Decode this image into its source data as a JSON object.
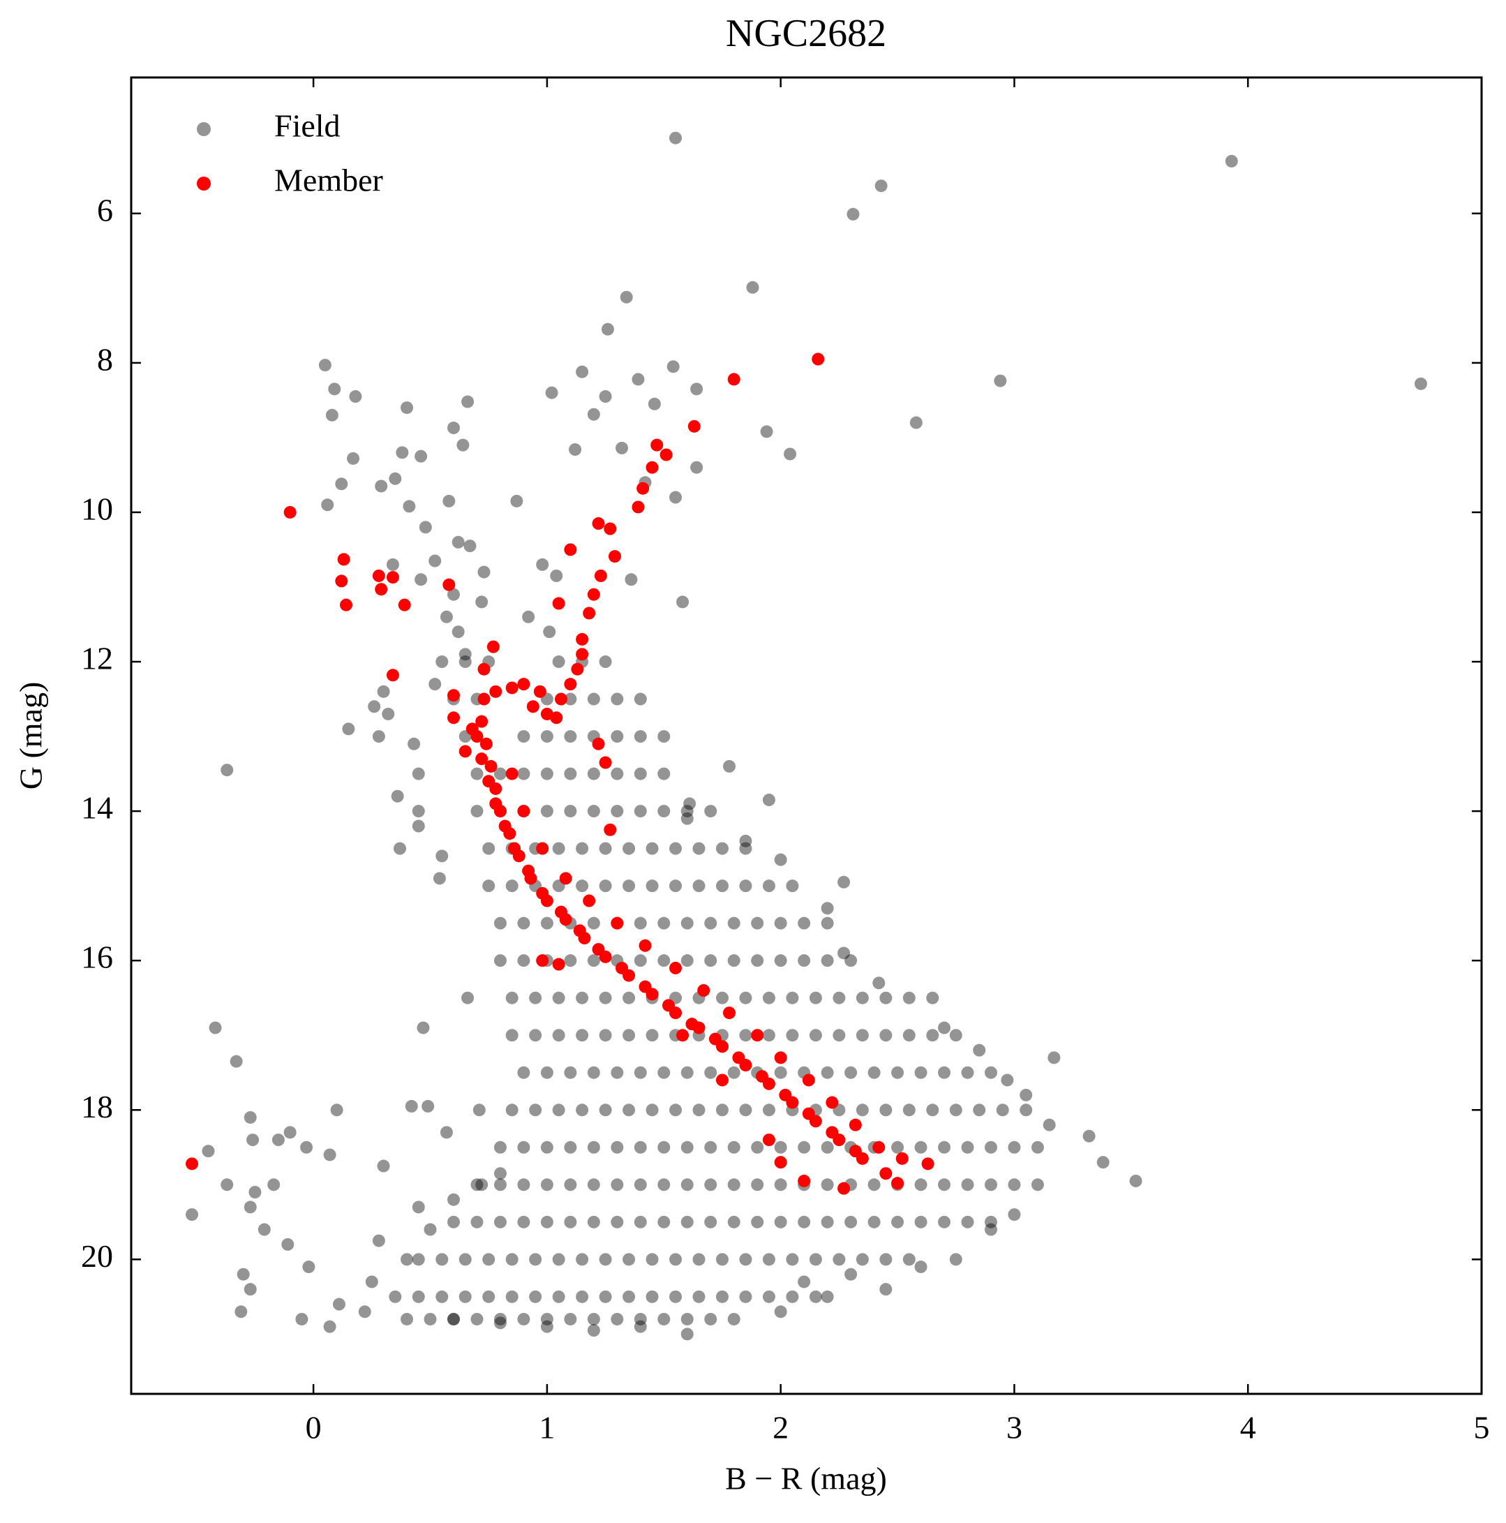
{
  "chart_data": {
    "type": "scatter",
    "title": "NGC2682",
    "x_label": "B − R (mag)",
    "y_label": "G (mag)",
    "xlim": [
      -0.78,
      5.0
    ],
    "ylim": [
      21.8,
      4.18
    ],
    "xticks": [
      0,
      1,
      2,
      3,
      4,
      5
    ],
    "yticks": [
      6,
      8,
      10,
      12,
      14,
      16,
      18,
      20
    ],
    "legend": "upper left",
    "grid": false,
    "series": [
      {
        "name": "Field",
        "color": "#000000",
        "alpha": 0.42,
        "x": [
          1.55,
          3.93,
          2.43,
          2.31,
          1.88,
          1.34,
          1.26,
          0.05,
          1.15,
          1.54,
          1.39,
          1.64,
          2.94,
          4.74,
          0.09,
          0.18,
          0.4,
          0.66,
          1.02,
          1.25,
          1.46,
          0.08,
          1.2,
          2.58,
          1.94,
          0.6,
          0.17,
          0.38,
          0.46,
          0.64,
          1.32,
          1.12,
          2.04,
          1.64,
          0.12,
          0.29,
          0.35,
          1.42,
          0.06,
          0.41,
          0.58,
          0.87,
          1.55,
          0.48,
          0.62,
          0.67,
          0.52,
          0.34,
          0.46,
          0.6,
          0.73,
          0.98,
          1.04,
          1.36,
          1.58,
          0.57,
          0.72,
          0.62,
          0.65,
          0.92,
          1.01,
          0.52,
          0.26,
          0.3,
          0.32,
          0.15,
          0.28,
          -0.37,
          0.43,
          0.45,
          0.36,
          0.45,
          0.45,
          0.37,
          0.54,
          0.55,
          1.78,
          1.95,
          1.61,
          0.66,
          0.47,
          -0.42,
          -0.33,
          0.1,
          0.42,
          0.49,
          0.57,
          0.71,
          -0.27,
          -0.26,
          -0.15,
          -0.1,
          -0.03,
          0.07,
          0.3,
          -0.45,
          -0.52,
          -0.37,
          -0.25,
          -0.17,
          -0.27,
          -0.21,
          -0.11,
          -0.02,
          -0.3,
          -0.27,
          -0.31,
          -0.05,
          0.07,
          0.11,
          0.22,
          0.25,
          0.28,
          0.4,
          0.5,
          0.45,
          0.6,
          0.72,
          0.8,
          3.52,
          3.38,
          3.32,
          3.15,
          3.05,
          3.17,
          2.97,
          2.85,
          2.7,
          2.65,
          2.42,
          2.27,
          2.2,
          2.27,
          2.0,
          1.85,
          1.6,
          3.0,
          2.9,
          2.75,
          2.6,
          2.45,
          2.2,
          2.0,
          1.8,
          1.6,
          1.4,
          1.2,
          1.0,
          0.8,
          0.6,
          2.1,
          2.3,
          0.55,
          0.65,
          0.75,
          1.05,
          1.15,
          1.25,
          0.6,
          0.7,
          1.0,
          1.1,
          1.2,
          1.3,
          1.4,
          0.65,
          0.9,
          1.0,
          1.1,
          1.2,
          1.3,
          1.4,
          1.5,
          0.7,
          0.8,
          0.9,
          1.0,
          1.1,
          1.2,
          1.3,
          1.4,
          1.5,
          0.7,
          0.8,
          0.9,
          1.0,
          1.1,
          1.2,
          1.3,
          1.4,
          1.5,
          1.6,
          1.7,
          0.75,
          0.85,
          0.95,
          1.05,
          1.15,
          1.25,
          1.35,
          1.45,
          1.55,
          1.65,
          1.75,
          1.85,
          0.75,
          0.85,
          0.95,
          1.05,
          1.15,
          1.25,
          1.35,
          1.45,
          1.55,
          1.65,
          1.75,
          1.85,
          1.95,
          2.05,
          0.8,
          0.9,
          1.0,
          1.1,
          1.2,
          1.3,
          1.4,
          1.5,
          1.6,
          1.7,
          1.8,
          1.9,
          2.0,
          2.1,
          2.2,
          0.8,
          0.9,
          1.0,
          1.1,
          1.2,
          1.3,
          1.4,
          1.5,
          1.6,
          1.7,
          1.8,
          1.9,
          2.0,
          2.1,
          2.2,
          2.3,
          0.85,
          0.95,
          1.05,
          1.15,
          1.25,
          1.35,
          1.45,
          1.55,
          1.65,
          1.75,
          1.85,
          1.95,
          2.05,
          2.15,
          2.25,
          2.35,
          2.45,
          2.55,
          0.85,
          0.95,
          1.05,
          1.15,
          1.25,
          1.35,
          1.45,
          1.55,
          1.65,
          1.75,
          1.85,
          1.95,
          2.05,
          2.15,
          2.25,
          2.35,
          2.45,
          2.55,
          2.65,
          2.75,
          0.9,
          1.0,
          1.1,
          1.2,
          1.3,
          1.4,
          1.5,
          1.6,
          1.7,
          1.8,
          1.9,
          2.0,
          2.1,
          2.2,
          2.3,
          2.4,
          2.5,
          2.6,
          2.7,
          2.8,
          2.9,
          0.85,
          0.95,
          1.05,
          1.15,
          1.25,
          1.35,
          1.45,
          1.55,
          1.65,
          1.75,
          1.85,
          1.95,
          2.05,
          2.15,
          2.25,
          2.35,
          2.45,
          2.55,
          2.65,
          2.75,
          2.85,
          2.95,
          3.05,
          0.8,
          0.9,
          1.0,
          1.1,
          1.2,
          1.3,
          1.4,
          1.5,
          1.6,
          1.7,
          1.8,
          1.9,
          2.0,
          2.1,
          2.2,
          2.3,
          2.4,
          2.5,
          2.6,
          2.7,
          2.8,
          2.9,
          3.0,
          3.1,
          0.7,
          0.8,
          0.9,
          1.0,
          1.1,
          1.2,
          1.3,
          1.4,
          1.5,
          1.6,
          1.7,
          1.8,
          1.9,
          2.0,
          2.1,
          2.2,
          2.3,
          2.4,
          2.5,
          2.6,
          2.7,
          2.8,
          2.9,
          3.0,
          3.1,
          0.6,
          0.7,
          0.8,
          0.9,
          1.0,
          1.1,
          1.2,
          1.3,
          1.4,
          1.5,
          1.6,
          1.7,
          1.8,
          1.9,
          2.0,
          2.1,
          2.2,
          2.3,
          2.4,
          2.5,
          2.6,
          2.7,
          2.8,
          2.9,
          0.45,
          0.55,
          0.65,
          0.75,
          0.85,
          0.95,
          1.05,
          1.15,
          1.25,
          1.35,
          1.45,
          1.55,
          1.65,
          1.75,
          1.85,
          1.95,
          2.05,
          2.15,
          2.25,
          2.35,
          2.45,
          2.55,
          0.35,
          0.45,
          0.55,
          0.65,
          0.75,
          0.85,
          0.95,
          1.05,
          1.15,
          1.25,
          1.35,
          1.45,
          1.55,
          1.65,
          1.75,
          1.85,
          1.95,
          2.05,
          2.15,
          0.4,
          0.5,
          0.6,
          0.7,
          0.8,
          0.9,
          1.0,
          1.1,
          1.2,
          1.3,
          1.4,
          1.5,
          1.6,
          1.7
        ],
        "y": [
          4.99,
          5.3,
          5.63,
          6.01,
          6.99,
          7.12,
          7.55,
          8.03,
          8.12,
          8.05,
          8.22,
          8.35,
          8.24,
          8.28,
          8.35,
          8.45,
          8.6,
          8.52,
          8.4,
          8.45,
          8.55,
          8.7,
          8.69,
          8.8,
          8.92,
          8.87,
          9.28,
          9.2,
          9.25,
          9.1,
          9.14,
          9.16,
          9.22,
          9.4,
          9.62,
          9.65,
          9.55,
          9.6,
          9.9,
          9.92,
          9.85,
          9.85,
          9.8,
          10.2,
          10.4,
          10.45,
          10.65,
          10.7,
          10.9,
          11.1,
          10.8,
          10.7,
          10.85,
          10.9,
          11.2,
          11.4,
          11.2,
          11.6,
          11.9,
          11.4,
          11.6,
          12.3,
          12.6,
          12.4,
          12.7,
          12.9,
          13.0,
          13.45,
          13.1,
          13.5,
          13.8,
          14.0,
          14.2,
          14.5,
          14.9,
          14.6,
          13.4,
          13.85,
          13.9,
          16.5,
          16.9,
          16.9,
          17.35,
          18.0,
          17.95,
          17.95,
          18.3,
          18.0,
          18.1,
          18.4,
          18.4,
          18.3,
          18.5,
          18.6,
          18.75,
          18.55,
          19.4,
          19.0,
          19.1,
          19.0,
          19.3,
          19.6,
          19.8,
          20.1,
          20.2,
          20.4,
          20.7,
          20.8,
          20.9,
          20.6,
          20.7,
          20.3,
          19.75,
          20.0,
          19.6,
          19.3,
          19.2,
          19.0,
          18.85,
          18.95,
          18.7,
          18.35,
          18.2,
          17.8,
          17.3,
          17.6,
          17.2,
          16.9,
          16.5,
          16.3,
          15.9,
          15.3,
          14.95,
          14.65,
          14.4,
          14.1,
          19.4,
          19.6,
          20.0,
          20.1,
          20.4,
          20.5,
          20.7,
          20.8,
          21.0,
          20.9,
          20.95,
          20.9,
          20.85,
          20.8,
          20.3,
          20.2,
          12,
          12,
          12,
          12,
          12,
          12,
          12.5,
          12.5,
          12.5,
          12.5,
          12.5,
          12.5,
          12.5,
          13,
          13,
          13,
          13,
          13,
          13,
          13,
          13,
          13.5,
          13.5,
          13.5,
          13.5,
          13.5,
          13.5,
          13.5,
          13.5,
          13.5,
          14,
          14,
          14,
          14,
          14,
          14,
          14,
          14,
          14,
          14,
          14,
          14.5,
          14.5,
          14.5,
          14.5,
          14.5,
          14.5,
          14.5,
          14.5,
          14.5,
          14.5,
          14.5,
          14.5,
          15,
          15,
          15,
          15,
          15,
          15,
          15,
          15,
          15,
          15,
          15,
          15,
          15,
          15,
          15.5,
          15.5,
          15.5,
          15.5,
          15.5,
          15.5,
          15.5,
          15.5,
          15.5,
          15.5,
          15.5,
          15.5,
          15.5,
          15.5,
          15.5,
          16,
          16,
          16,
          16,
          16,
          16,
          16,
          16,
          16,
          16,
          16,
          16,
          16,
          16,
          16,
          16,
          16.5,
          16.5,
          16.5,
          16.5,
          16.5,
          16.5,
          16.5,
          16.5,
          16.5,
          16.5,
          16.5,
          16.5,
          16.5,
          16.5,
          16.5,
          16.5,
          16.5,
          16.5,
          17,
          17,
          17,
          17,
          17,
          17,
          17,
          17,
          17,
          17,
          17,
          17,
          17,
          17,
          17,
          17,
          17,
          17,
          17,
          17,
          17.5,
          17.5,
          17.5,
          17.5,
          17.5,
          17.5,
          17.5,
          17.5,
          17.5,
          17.5,
          17.5,
          17.5,
          17.5,
          17.5,
          17.5,
          17.5,
          17.5,
          17.5,
          17.5,
          17.5,
          17.5,
          18,
          18,
          18,
          18,
          18,
          18,
          18,
          18,
          18,
          18,
          18,
          18,
          18,
          18,
          18,
          18,
          18,
          18,
          18,
          18,
          18,
          18,
          18,
          18.5,
          18.5,
          18.5,
          18.5,
          18.5,
          18.5,
          18.5,
          18.5,
          18.5,
          18.5,
          18.5,
          18.5,
          18.5,
          18.5,
          18.5,
          18.5,
          18.5,
          18.5,
          18.5,
          18.5,
          18.5,
          18.5,
          18.5,
          18.5,
          19,
          19,
          19,
          19,
          19,
          19,
          19,
          19,
          19,
          19,
          19,
          19,
          19,
          19,
          19,
          19,
          19,
          19,
          19,
          19,
          19,
          19,
          19,
          19,
          19,
          19.5,
          19.5,
          19.5,
          19.5,
          19.5,
          19.5,
          19.5,
          19.5,
          19.5,
          19.5,
          19.5,
          19.5,
          19.5,
          19.5,
          19.5,
          19.5,
          19.5,
          19.5,
          19.5,
          19.5,
          19.5,
          19.5,
          19.5,
          19.5,
          20,
          20,
          20,
          20,
          20,
          20,
          20,
          20,
          20,
          20,
          20,
          20,
          20,
          20,
          20,
          20,
          20,
          20,
          20,
          20,
          20,
          20,
          20.5,
          20.5,
          20.5,
          20.5,
          20.5,
          20.5,
          20.5,
          20.5,
          20.5,
          20.5,
          20.5,
          20.5,
          20.5,
          20.5,
          20.5,
          20.5,
          20.5,
          20.5,
          20.5,
          20.8,
          20.8,
          20.8,
          20.8,
          20.8,
          20.8,
          20.8,
          20.8,
          20.8,
          20.8,
          20.8,
          20.8,
          20.8,
          20.8
        ]
      },
      {
        "name": "Member",
        "color": "#ff0000",
        "alpha": 1,
        "x": [
          -0.1,
          0.13,
          0.12,
          0.14,
          0.28,
          0.34,
          0.29,
          0.39,
          0.34,
          0.58,
          1.8,
          2.16,
          1.63,
          1.47,
          1.51,
          1.45,
          1.41,
          1.39,
          1.22,
          1.27,
          1.29,
          1.1,
          1.23,
          1.2,
          1.18,
          1.05,
          1.15,
          1.15,
          1.13,
          1.1,
          1.06,
          0.97,
          0.9,
          0.85,
          0.78,
          0.73,
          1.0,
          1.04,
          0.94,
          0.6,
          0.6,
          0.77,
          0.73,
          1.22,
          1.25,
          0.72,
          0.74,
          0.76,
          0.78,
          0.8,
          0.84,
          0.88,
          0.93,
          1.0,
          1.08,
          1.16,
          1.25,
          1.35,
          1.45,
          1.55,
          1.65,
          1.75,
          1.85,
          1.95,
          2.05,
          2.15,
          2.25,
          2.35,
          2.45,
          0.85,
          0.9,
          0.98,
          1.08,
          1.18,
          1.3,
          1.42,
          1.55,
          1.67,
          1.78,
          1.9,
          2.0,
          2.12,
          2.22,
          2.32,
          2.42,
          2.52,
          2.63,
          2.5,
          2.27,
          2.1,
          1.95,
          2.0,
          1.75,
          1.58,
          0.98,
          1.05,
          1.27,
          0.65,
          0.68,
          -0.52,
          0.7,
          0.72,
          0.75,
          0.78,
          0.82,
          0.86,
          0.92,
          0.98,
          1.06,
          1.14,
          1.22,
          1.32,
          1.42,
          1.52,
          1.62,
          1.72,
          1.82,
          1.92,
          2.02,
          2.12,
          2.22,
          2.32
        ],
        "y": [
          10.0,
          10.63,
          10.92,
          11.24,
          10.85,
          10.87,
          11.03,
          11.24,
          12.18,
          10.97,
          8.22,
          7.95,
          8.85,
          9.1,
          9.23,
          9.4,
          9.68,
          9.93,
          10.15,
          10.22,
          10.59,
          10.5,
          10.85,
          11.1,
          11.35,
          11.22,
          11.7,
          11.9,
          12.1,
          12.3,
          12.5,
          12.4,
          12.3,
          12.35,
          12.4,
          12.5,
          12.7,
          12.75,
          12.6,
          12.45,
          12.75,
          11.8,
          12.1,
          13.1,
          13.35,
          12.8,
          13.1,
          13.4,
          13.7,
          14.0,
          14.3,
          14.6,
          14.9,
          15.2,
          15.45,
          15.7,
          15.95,
          16.2,
          16.45,
          16.7,
          16.9,
          17.15,
          17.4,
          17.65,
          17.9,
          18.15,
          18.4,
          18.65,
          18.85,
          13.5,
          14.0,
          14.5,
          14.9,
          15.2,
          15.5,
          15.8,
          16.1,
          16.4,
          16.7,
          17.0,
          17.3,
          17.6,
          17.9,
          18.2,
          18.5,
          18.65,
          18.72,
          18.98,
          19.05,
          18.95,
          18.4,
          18.7,
          17.6,
          17.0,
          16.0,
          16.05,
          14.25,
          13.2,
          12.9,
          18.72,
          13.0,
          13.3,
          13.6,
          13.9,
          14.2,
          14.5,
          14.8,
          15.1,
          15.35,
          15.6,
          15.85,
          16.1,
          16.35,
          16.6,
          16.85,
          17.05,
          17.3,
          17.55,
          17.8,
          18.05,
          18.3,
          18.55
        ]
      }
    ]
  }
}
